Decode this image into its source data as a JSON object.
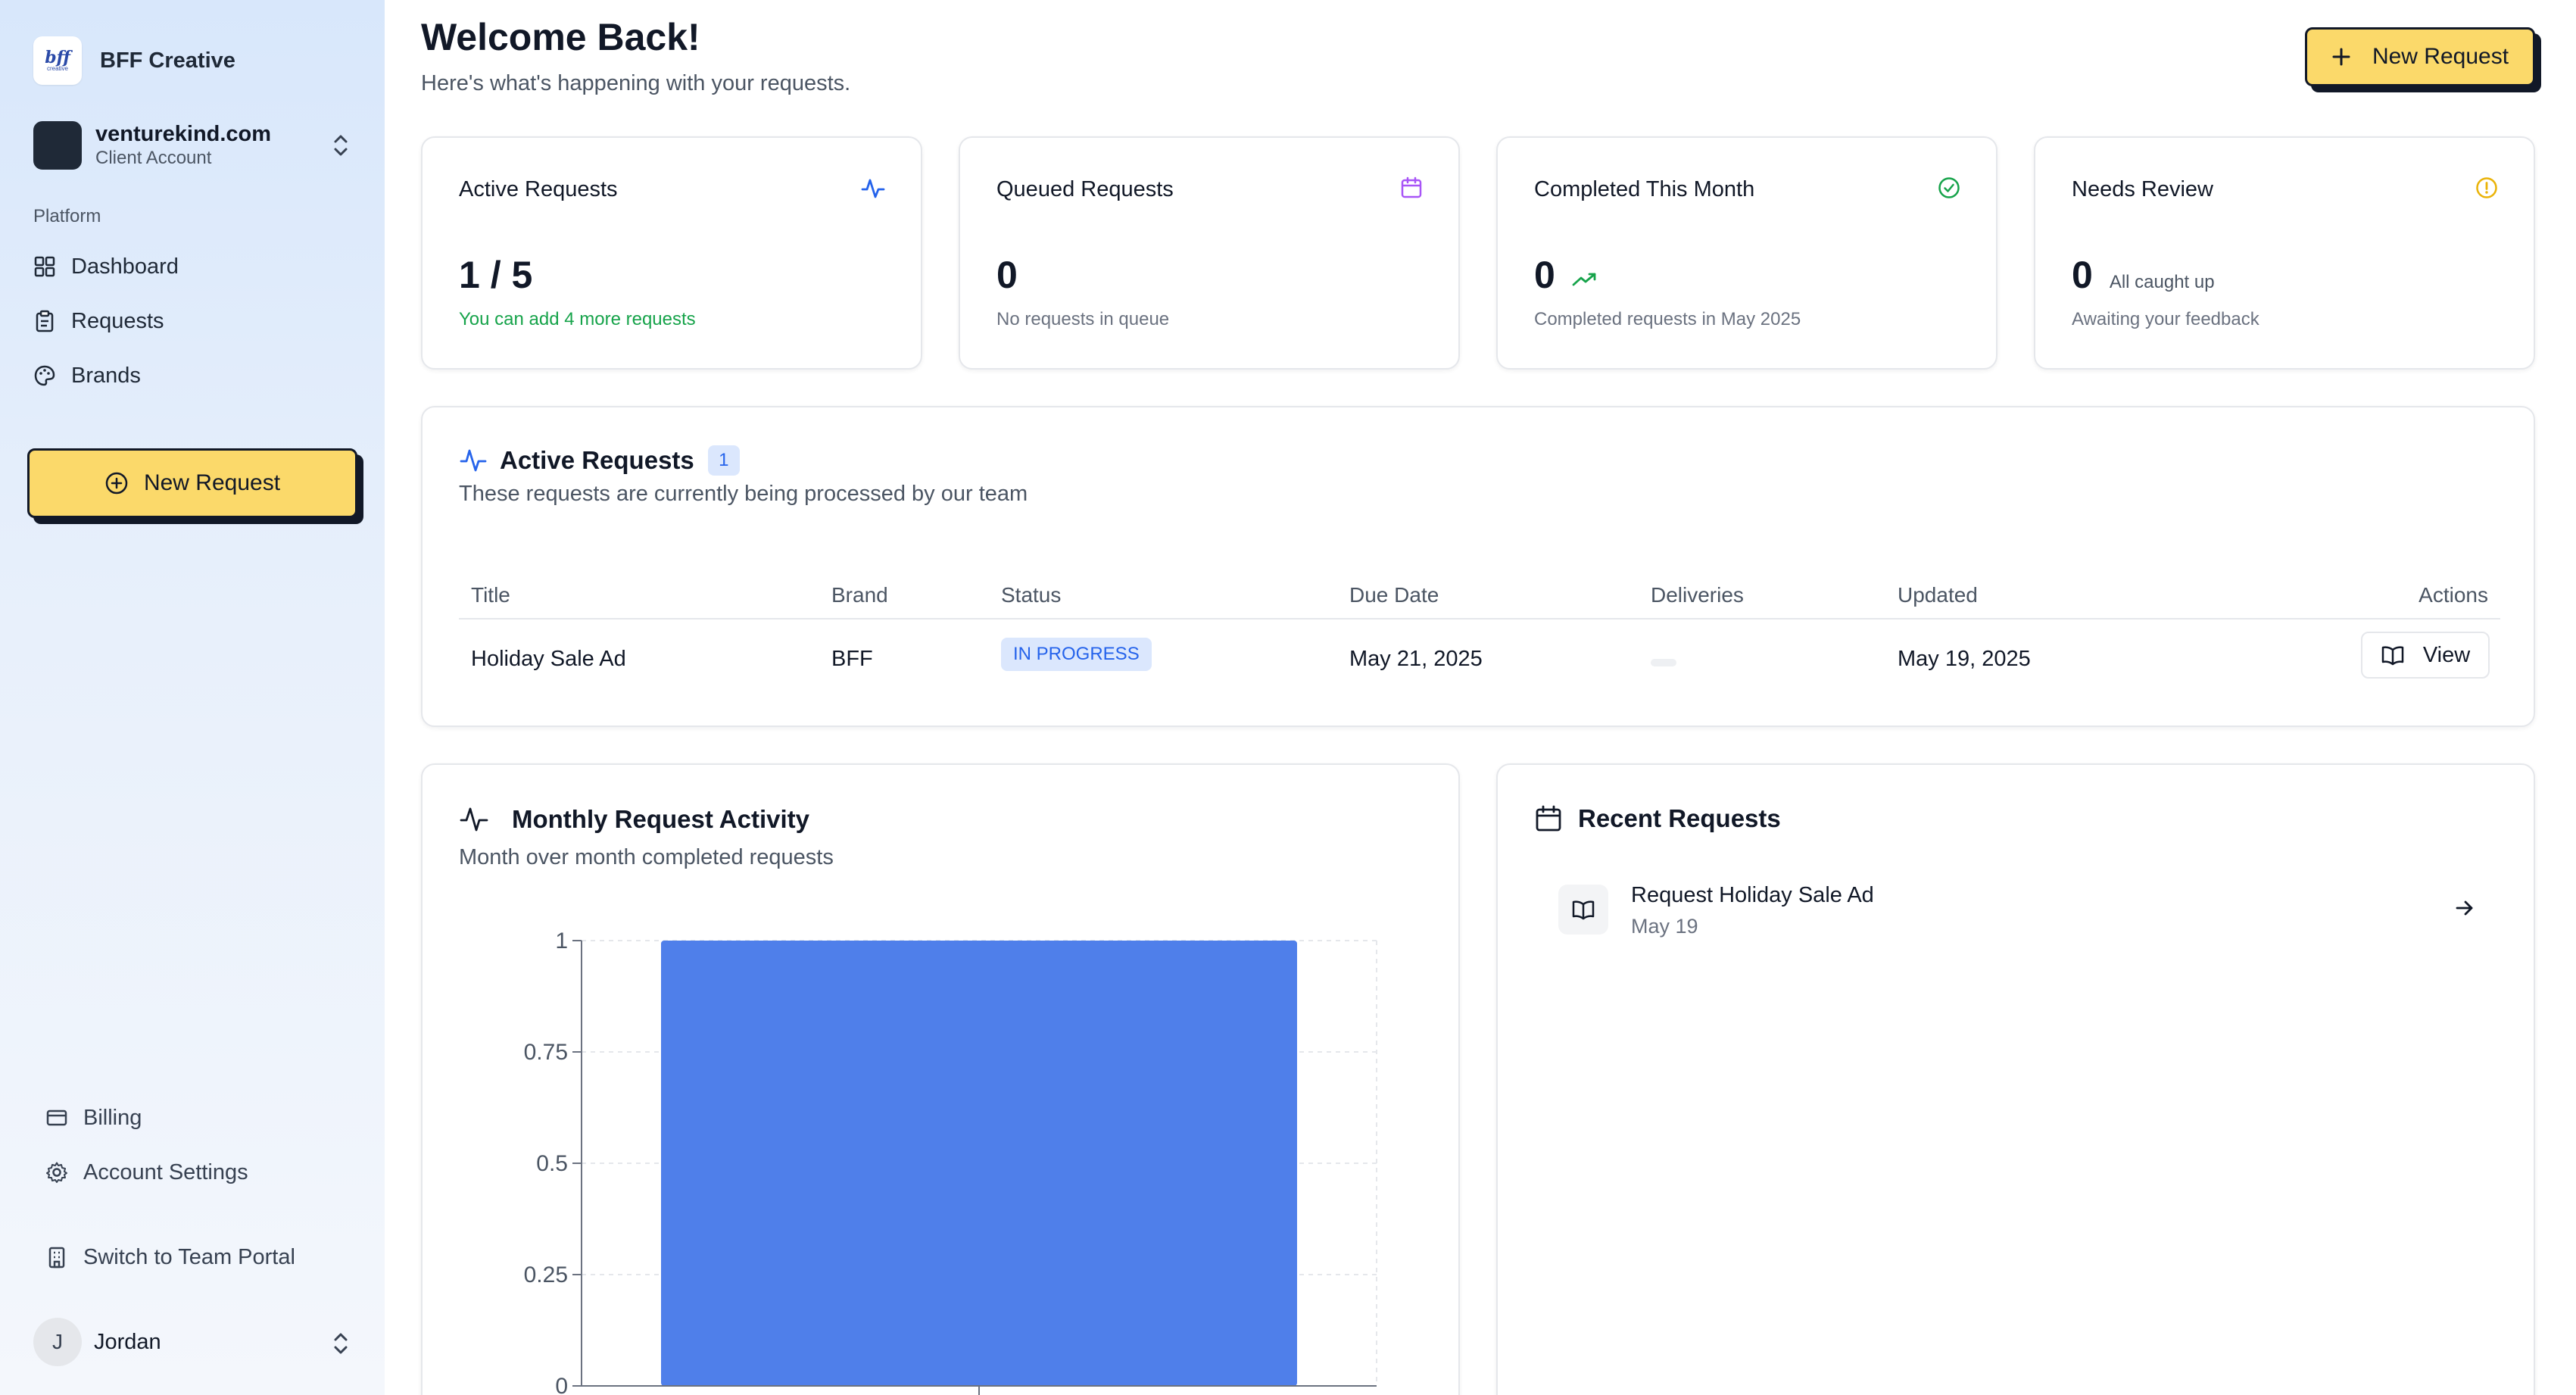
{
  "sidebar": {
    "brand": {
      "name": "BFF Creative",
      "logo_line1": "bff",
      "logo_line2": "creative"
    },
    "account": {
      "name": "venturekind.com",
      "role": "Client Account"
    },
    "section_label": "Platform",
    "nav": [
      {
        "label": "Dashboard",
        "icon": "grid-icon"
      },
      {
        "label": "Requests",
        "icon": "clipboard-icon"
      },
      {
        "label": "Brands",
        "icon": "palette-icon"
      }
    ],
    "new_request_label": "New Request",
    "bottom": [
      {
        "label": "Billing",
        "icon": "credit-card-icon"
      },
      {
        "label": "Account Settings",
        "icon": "gear-icon"
      },
      {
        "label": "Switch to Team Portal",
        "icon": "building-icon"
      }
    ],
    "user": {
      "initial": "J",
      "name": "Jordan"
    }
  },
  "header": {
    "title": "Welcome Back!",
    "subtitle": "Here's what's happening with your requests.",
    "new_request_label": "New Request"
  },
  "stats": [
    {
      "title": "Active Requests",
      "value": "1 / 5",
      "inline": "",
      "sub": "You can add 4 more requests",
      "icon": "activity-icon",
      "color": "#2563eb"
    },
    {
      "title": "Queued Requests",
      "value": "0",
      "inline": "",
      "sub": "No requests in queue",
      "icon": "calendar-icon",
      "color": "#a855f7"
    },
    {
      "title": "Completed This Month",
      "value": "0",
      "inline": "",
      "sub": "Completed requests in May 2025",
      "icon": "check-circle-icon",
      "color": "#16a34a"
    },
    {
      "title": "Needs Review",
      "value": "0",
      "inline": "All caught up",
      "sub": "Awaiting your feedback",
      "icon": "alert-circle-icon",
      "color": "#eab308"
    }
  ],
  "active_requests": {
    "title": "Active Requests",
    "count": "1",
    "subtitle": "These requests are currently being processed by our team",
    "columns": [
      "Title",
      "Brand",
      "Status",
      "Due Date",
      "Deliveries",
      "Updated",
      "Actions"
    ],
    "rows": [
      {
        "title": "Holiday Sale Ad",
        "brand": "BFF",
        "status": "IN PROGRESS",
        "due": "May 21, 2025",
        "updated": "May 19, 2025",
        "action": "View"
      }
    ]
  },
  "monthly_activity": {
    "title": "Monthly Request Activity",
    "subtitle": "Month over month completed requests"
  },
  "chart_data": {
    "type": "bar",
    "categories": [
      ""
    ],
    "values": [
      1
    ],
    "title": "Monthly Request Activity",
    "xlabel": "",
    "ylabel": "",
    "ylim": [
      0,
      1
    ],
    "yticks": [
      "0",
      "0.25",
      "0.5",
      "0.75",
      "1"
    ],
    "grid": true,
    "bar_color": "#4f7fea"
  },
  "recent_requests": {
    "title": "Recent Requests",
    "items": [
      {
        "name": "Request Holiday Sale Ad",
        "date": "May 19"
      }
    ]
  }
}
